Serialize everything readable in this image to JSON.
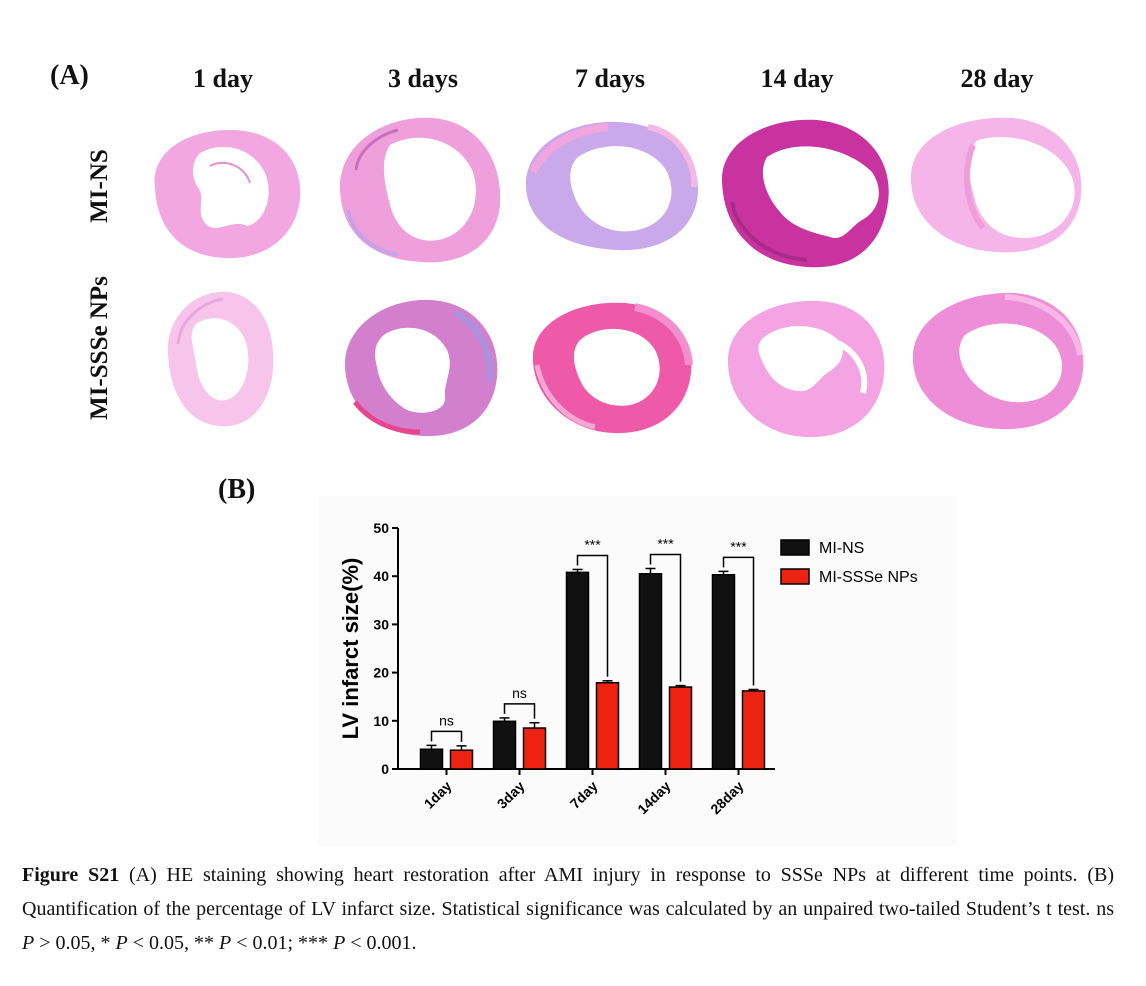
{
  "panel_a_label": "(A)",
  "panel_b_label": "(B)",
  "columns": [
    "1 day",
    "3 days",
    "7 days",
    "14 day",
    "28 day"
  ],
  "rows": [
    "MI-NS",
    "MI-SSSe NPs"
  ],
  "stain_colors": {
    "pink": "#f2a6e0",
    "light_pink": "#f7c4ec",
    "magenta": "#d24fc4",
    "blue_purple": "#b7a6e6",
    "red_pink": "#ef4f9f"
  },
  "chart_data": {
    "type": "bar",
    "categories": [
      "1day",
      "3day",
      "7day",
      "14day",
      "28day"
    ],
    "series": [
      {
        "name": "MI-NS",
        "color": "#111111",
        "values": [
          4.1,
          9.9,
          40.8,
          40.5,
          40.3
        ],
        "errors": [
          0.8,
          0.7,
          0.6,
          1.1,
          0.7
        ]
      },
      {
        "name": "MI-SSSe NPs",
        "color": "#ee2211",
        "values": [
          3.9,
          8.5,
          17.9,
          17.0,
          16.2
        ],
        "errors": [
          0.9,
          1.1,
          0.4,
          0.3,
          0.3
        ]
      }
    ],
    "ylabel": "LV infarct size(%)",
    "ylim": [
      0,
      50
    ],
    "yticks": [
      0,
      10,
      20,
      30,
      40,
      50
    ],
    "significance": [
      "ns",
      "ns",
      "***",
      "***",
      "***"
    ],
    "legend_position": "top-right"
  },
  "caption": {
    "label": "Figure S21",
    "text_1": " (A) HE staining showing heart restoration after AMI injury in response to SSSe NPs at different time points. (B) Quantification of the percentage of LV infarct size. Statistical significance was calculated by an unpaired two-tailed Student’s t test. ns ",
    "p": "P",
    "text_2": " > 0.05, * ",
    "text_3": " < 0.05, ** ",
    "text_4": " < 0.01; *** ",
    "text_5": " < 0.001."
  }
}
